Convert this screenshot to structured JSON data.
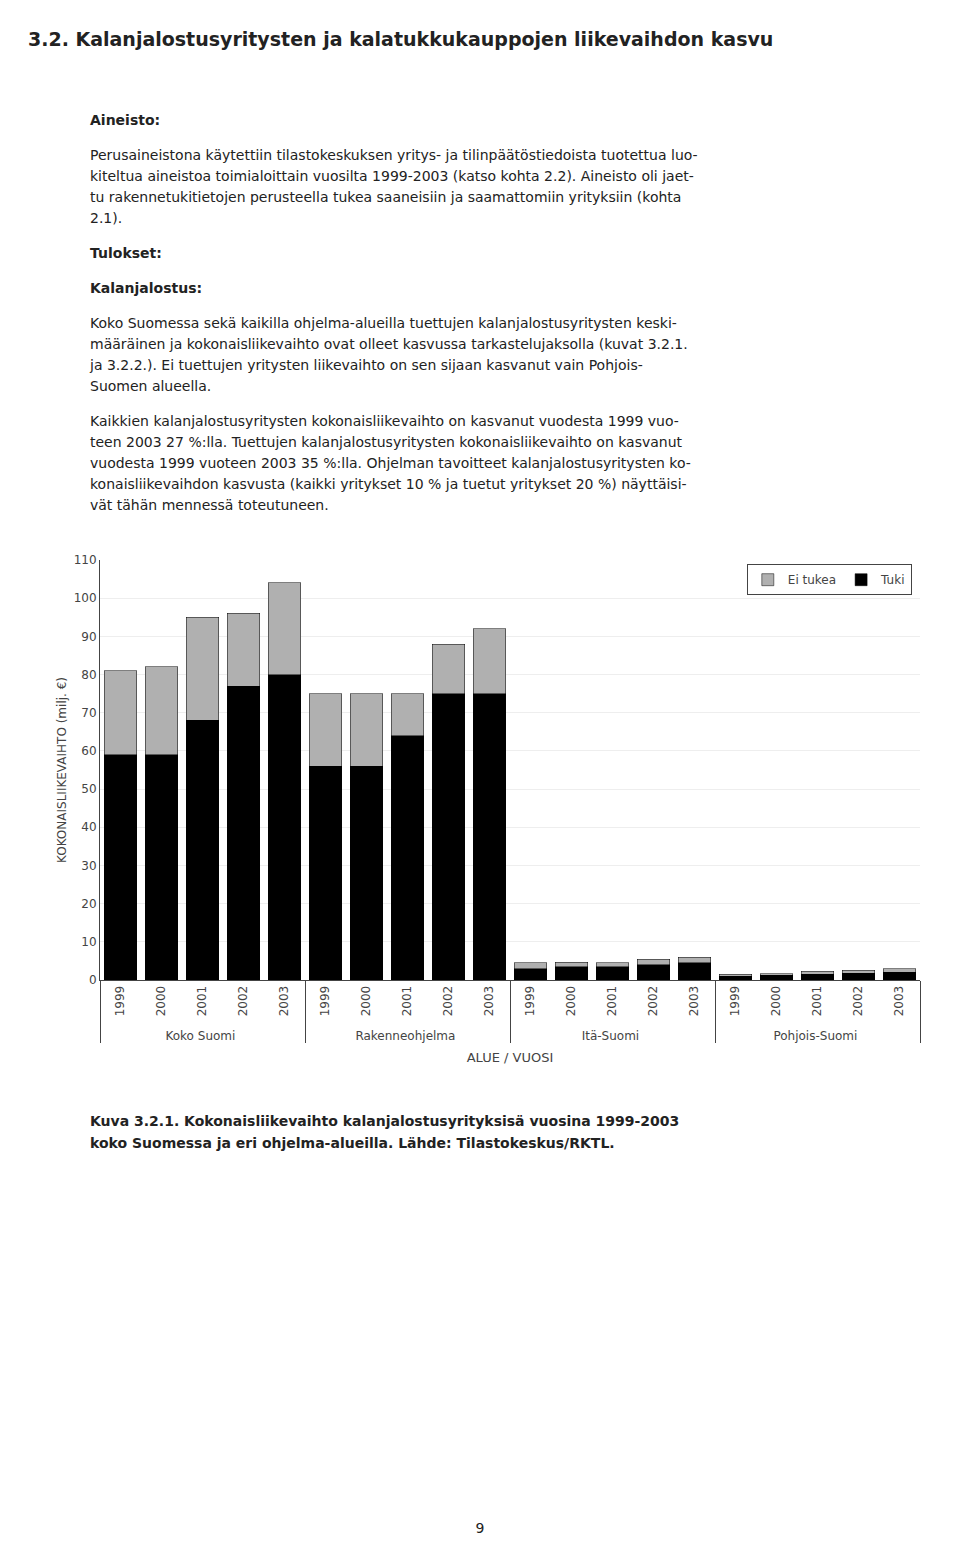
{
  "chart_data": {
    "type": "bar",
    "stacked": true,
    "title": "3.2. Kalanjalostusyritysten ja kalatukkukauppojen liikevaihdon kasvu",
    "annotations": [
      "Aineisto:",
      "Perusaineistona käytettiin tilastokeskuksen yritys- ja tilinpäätöstiedoista tuotettua luo-\nkiteltua aineistoa toimialoittain vuosilta 1999-2003 (katso kohta 2.2). Aineisto oli jaet-\ntu rakennetukitietojen perusteella tukea saaneisiin ja saamattomiin yrityksiin (kohta\n2.1).",
      "Tulokset:",
      "Kalanjalostus:",
      "Koko Suomessa sekä kaikilla ohjelma-alueilla tuettujen kalanjalostusyritysten keski-\nmääräinen ja kokonaisliikevaihto ovat olleet kasvussa tarkastelujaksolla (kuvat 3.2.1.\nja 3.2.2.). Ei tuettujen yritysten liikevaihto on sen sijaan kasvanut vain Pohjois-\nSuomen alueella.",
      "Kaikkien kalanjalostusyritysten kokonaisliikevaihto on kasvanut vuodesta 1999 vuo-\nteen 2003 27 %:lla. Tuettujen kalanjalostusyritysten kokonaisliikevaihto on kasvanut\nvuodesta 1999 vuoteen 2003 35 %:lla. Ohjelman tavoitteet kalanjalostusyritysten ko-\nkonaisliikevaihdon kasvusta (kaikki yritykset 10 % ja tuetut yritykset 20 %) näyttäisi-\nvät tähän mennessä toteutuneen."
    ],
    "caption": [
      "Kuva 3.2.1. Kokonaisliikevaihto kalanjalostusyrityksisä vuosina 1999-2003",
      "koko Suomessa ja eri ohjelma-alueilla. Lähde: Tilastokeskus/RKTL."
    ],
    "page_number": "9",
    "xlabel": "ALUE / VUOSI",
    "ylabel": "KOKONAISLIIKEVAIHTO (milj. €)",
    "groups": [
      "Koko Suomi",
      "Rakenneohjelma",
      "Itä-Suomi",
      "Pohjois-Suomi"
    ],
    "categories": [
      "1999",
      "2000",
      "2001",
      "2002",
      "2003"
    ],
    "series": [
      {
        "name": "Tuki",
        "color": "#000000",
        "values": [
          [
            59,
            59,
            68,
            77,
            80
          ],
          [
            56,
            56,
            64,
            75,
            75
          ],
          [
            3.0,
            3.5,
            3.5,
            4.0,
            4.5
          ],
          [
            1.0,
            1.2,
            1.5,
            1.8,
            2.0
          ]
        ]
      },
      {
        "name": "Ei tukea",
        "color": "#b0b0b0",
        "values": [
          [
            22,
            23,
            27,
            19,
            24
          ],
          [
            19,
            19,
            11,
            13,
            17
          ],
          [
            1.5,
            1.2,
            1.0,
            1.5,
            1.5
          ],
          [
            0.5,
            0.5,
            0.8,
            0.8,
            1.0
          ]
        ]
      }
    ],
    "ylim": [
      0,
      110
    ],
    "yticks": [
      0,
      10,
      20,
      30,
      40,
      50,
      60,
      70,
      80,
      90,
      100,
      110
    ],
    "grid": true,
    "legend": "upper right"
  }
}
